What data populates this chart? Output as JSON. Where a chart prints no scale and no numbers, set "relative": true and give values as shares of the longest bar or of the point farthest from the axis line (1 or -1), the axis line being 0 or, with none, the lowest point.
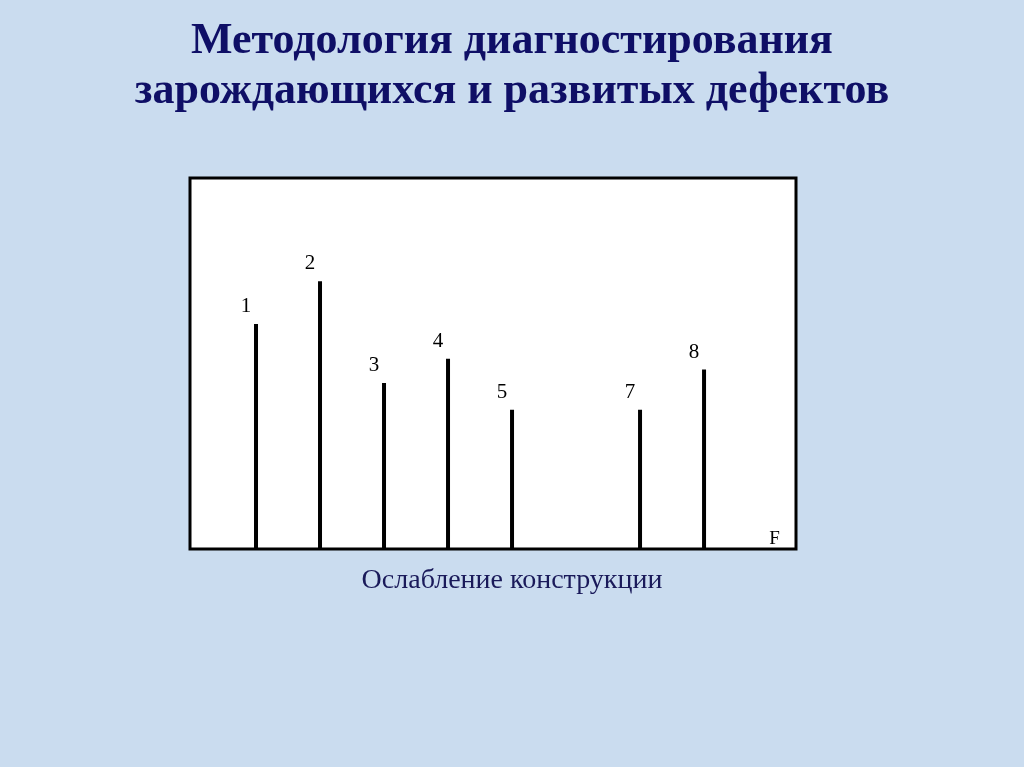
{
  "chart_data": {
    "type": "bar",
    "title": "Методология диагностирования зарождающихся и развитых дефектов",
    "xlabel": "F",
    "categories": [
      "1",
      "2",
      "3",
      "4",
      "5",
      null,
      "7",
      "8"
    ],
    "values": [
      0.84,
      1,
      0.62,
      0.71,
      0.52,
      null,
      0.52,
      0.67
    ],
    "color": "#000000",
    "relative": true,
    "annotations": [
      "Ослабление конструкции"
    ]
  }
}
